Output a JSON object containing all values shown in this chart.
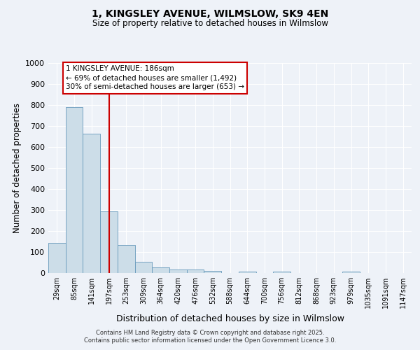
{
  "title_line1": "1, KINGSLEY AVENUE, WILMSLOW, SK9 4EN",
  "title_line2": "Size of property relative to detached houses in Wilmslow",
  "xlabel": "Distribution of detached houses by size in Wilmslow",
  "ylabel": "Number of detached properties",
  "bin_labels": [
    "29sqm",
    "85sqm",
    "141sqm",
    "197sqm",
    "253sqm",
    "309sqm",
    "364sqm",
    "420sqm",
    "476sqm",
    "532sqm",
    "588sqm",
    "644sqm",
    "700sqm",
    "756sqm",
    "812sqm",
    "868sqm",
    "923sqm",
    "979sqm",
    "1035sqm",
    "1091sqm",
    "1147sqm"
  ],
  "bar_heights": [
    145,
    790,
    665,
    295,
    135,
    55,
    28,
    18,
    18,
    10,
    0,
    8,
    0,
    8,
    0,
    0,
    0,
    8,
    0,
    0,
    0
  ],
  "bar_color": "#ccdde8",
  "bar_edge_color": "#6699bb",
  "vline_x_index": 3,
  "vline_color": "#cc0000",
  "annotation_text": "1 KINGSLEY AVENUE: 186sqm\n← 69% of detached houses are smaller (1,492)\n30% of semi-detached houses are larger (653) →",
  "annotation_box_color": "#ffffff",
  "annotation_box_edge_color": "#cc0000",
  "ylim": [
    0,
    1000
  ],
  "yticks": [
    0,
    100,
    200,
    300,
    400,
    500,
    600,
    700,
    800,
    900,
    1000
  ],
  "background_color": "#eef2f8",
  "grid_color": "#ffffff",
  "footer_line1": "Contains HM Land Registry data © Crown copyright and database right 2025.",
  "footer_line2": "Contains public sector information licensed under the Open Government Licence 3.0."
}
